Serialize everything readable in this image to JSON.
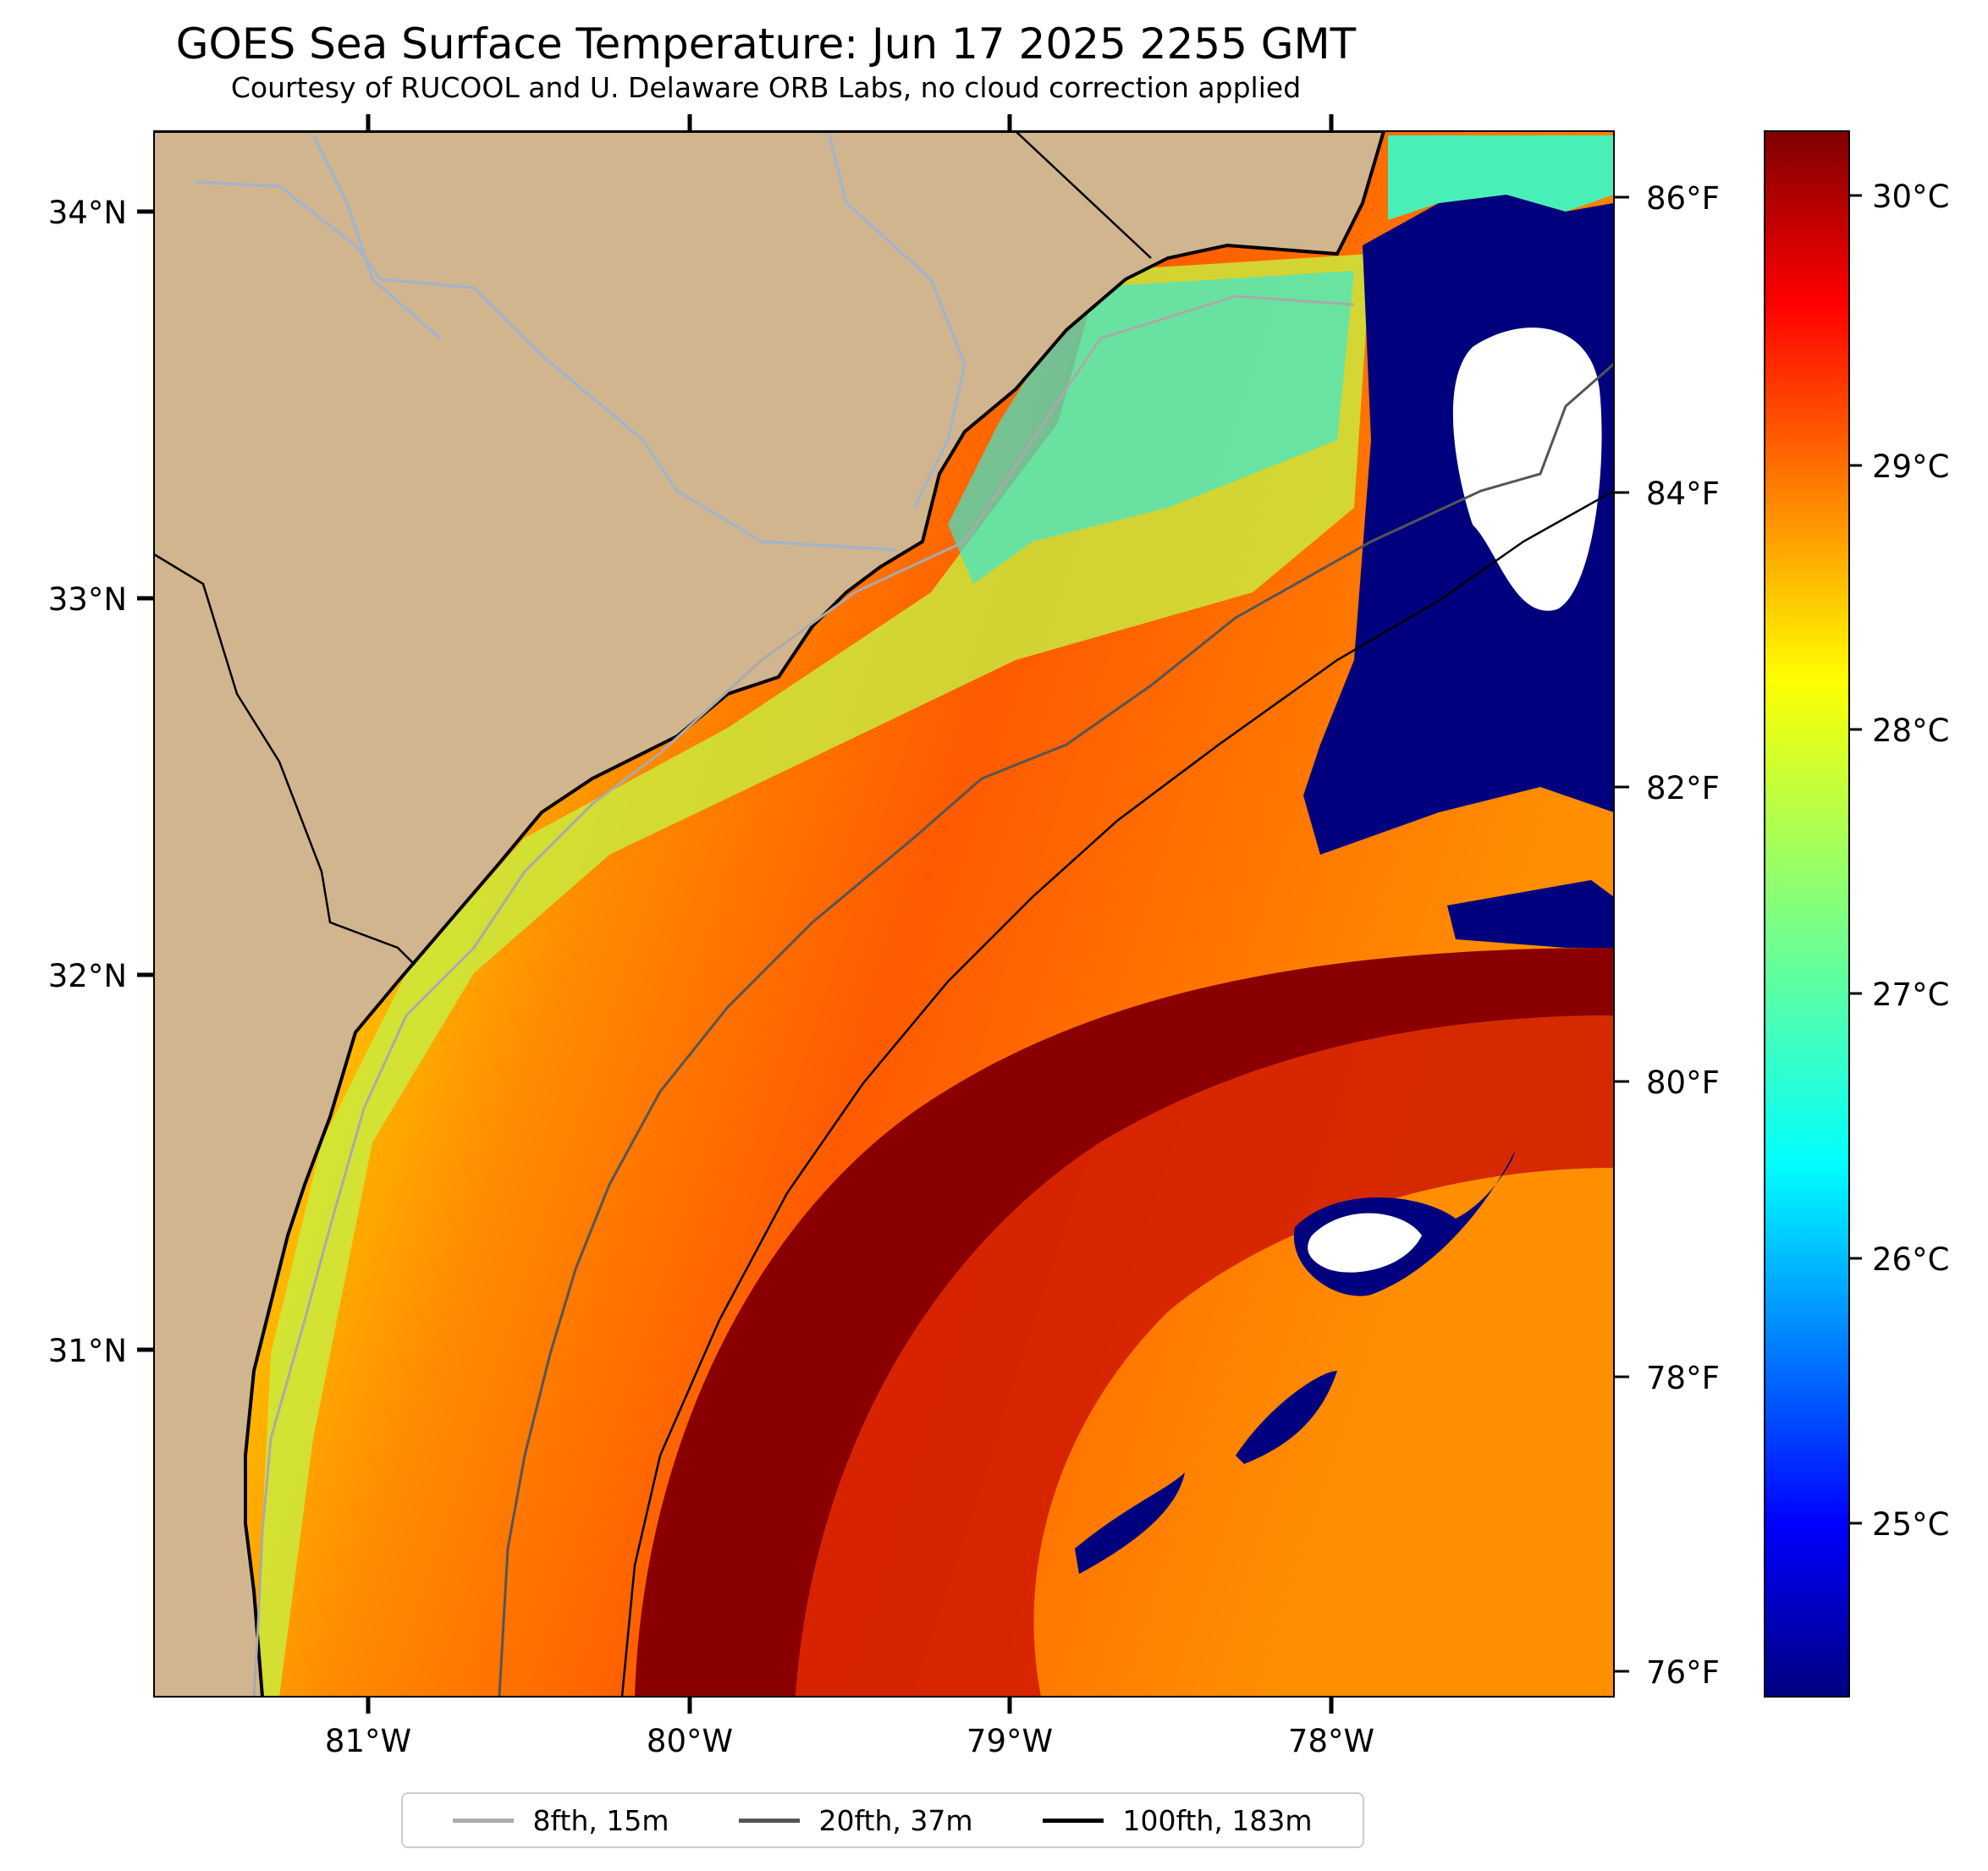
{
  "title": "GOES Sea Surface Temperature: Jun 17 2025 2255 GMT",
  "subtitle": "Courtesy of RUCOOL and U. Delaware ORB Labs, no cloud correction applied",
  "map": {
    "lat_labels": [
      "34°N",
      "33°N",
      "32°N",
      "31°N"
    ],
    "lon_labels": [
      "81°W",
      "80°W",
      "79°W",
      "78°W"
    ],
    "extent": {
      "lon": [
        -81.67,
        -77.15
      ],
      "lat": [
        30.09,
        34.22
      ]
    },
    "colors": {
      "land": "#d1b58f",
      "rivers": "#9eb4cf",
      "cloud_gap": "#ffffff",
      "coastline": "#000000"
    }
  },
  "fahrenheit_scale": {
    "labels": [
      "86°F",
      "84°F",
      "82°F",
      "80°F",
      "78°F",
      "76°F"
    ],
    "values": [
      86,
      84,
      82,
      80,
      78,
      76
    ]
  },
  "colorbar": {
    "labels": [
      "30°C",
      "29°C",
      "28°C",
      "27°C",
      "26°C",
      "25°C"
    ],
    "values": [
      30,
      29,
      28,
      27,
      26,
      25
    ],
    "range": [
      24.4,
      30.2
    ],
    "colormap": "jet"
  },
  "legend": {
    "entries": [
      {
        "label": "8fth, 15m",
        "color": "#aaaaaa"
      },
      {
        "label": "20fth, 37m",
        "color": "#555555"
      },
      {
        "label": "100fth, 183m",
        "color": "#000000"
      }
    ]
  }
}
